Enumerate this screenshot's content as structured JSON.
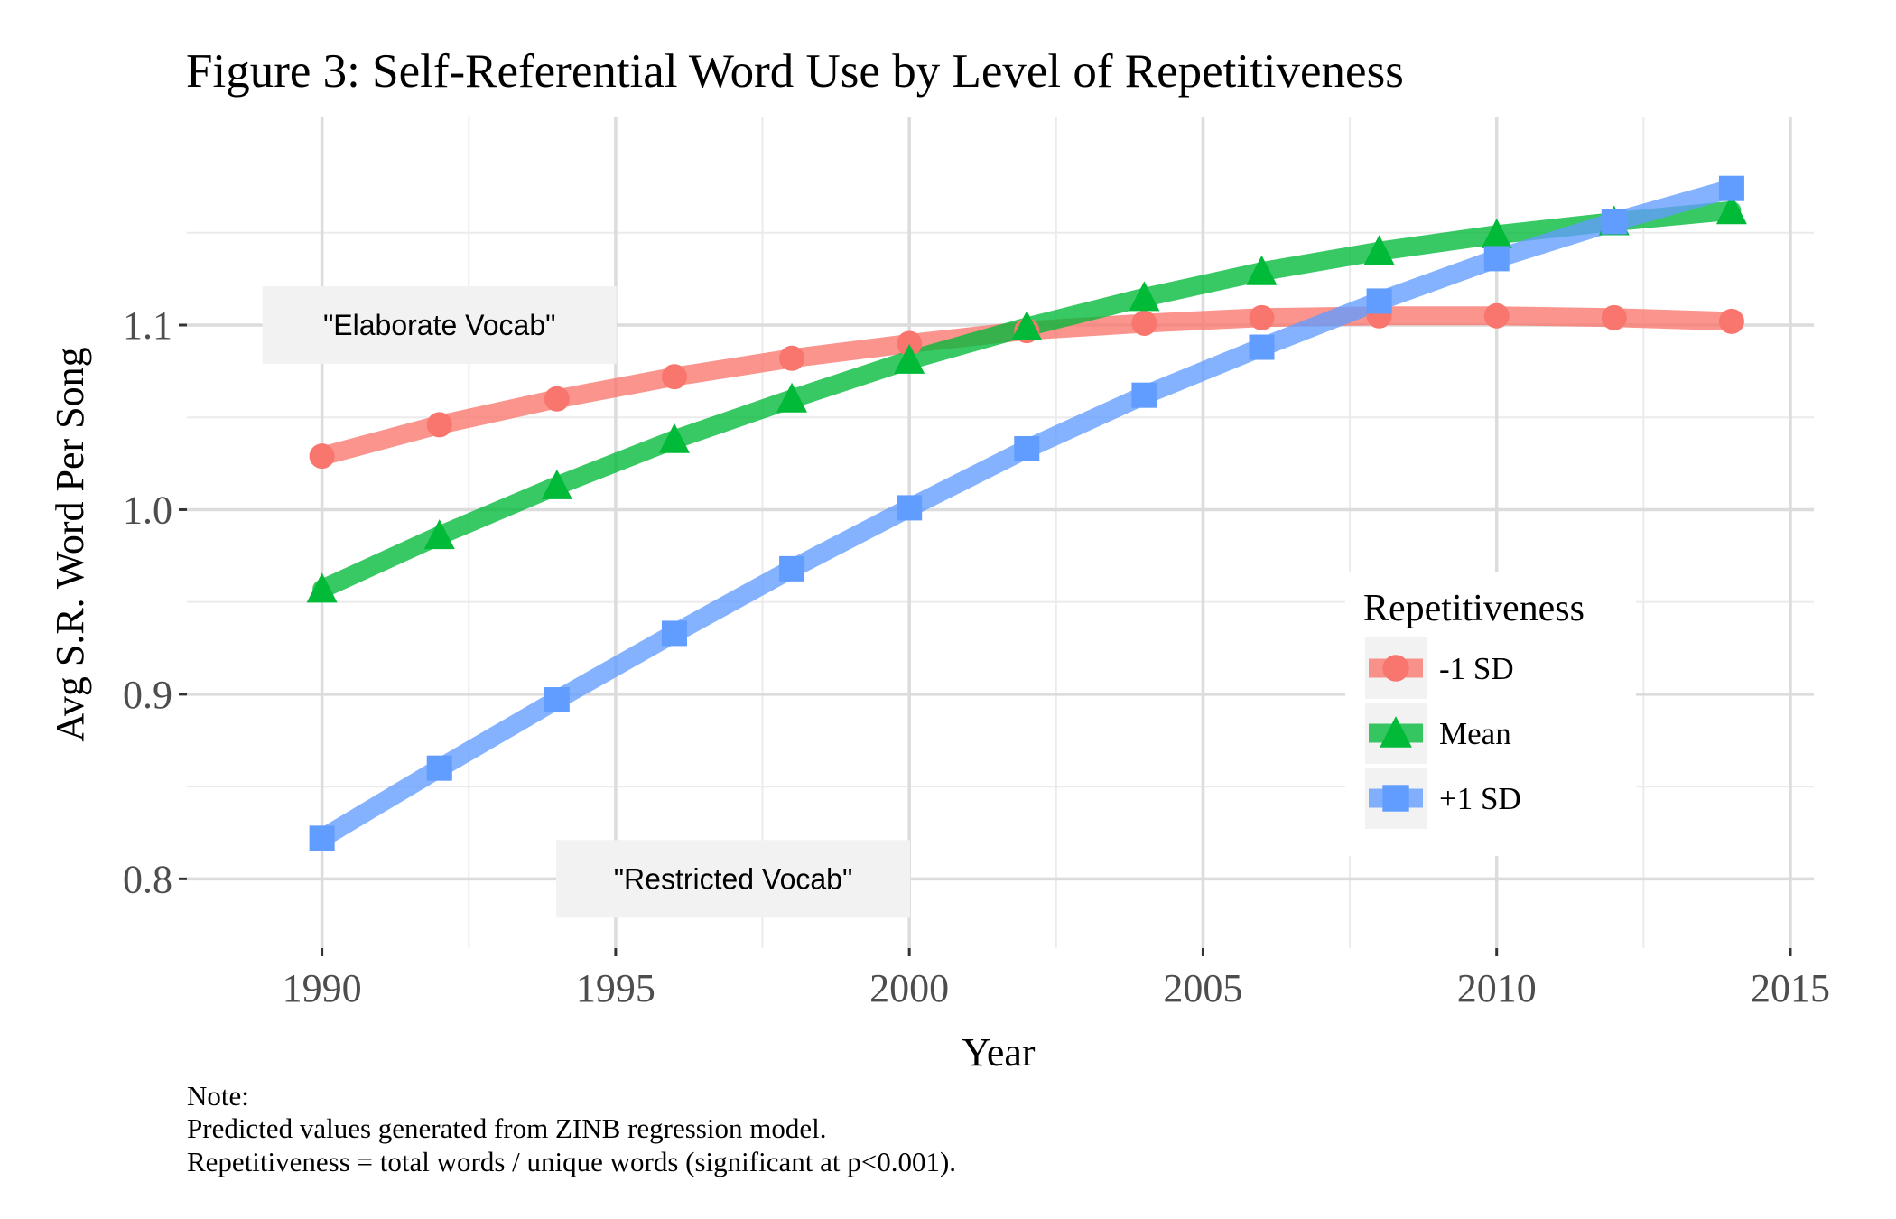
{
  "chart_data": {
    "type": "line",
    "title": "Figure 3: Self-Referential Word Use by Level of Repetitiveness",
    "xlabel": "Year",
    "ylabel": "Avg S.R. Word Per Song",
    "xlim": [
      1987.7,
      2015.4
    ],
    "ylim": [
      0.7625,
      1.2125
    ],
    "x_ticks": [
      1990,
      1995,
      2000,
      2005,
      2010,
      2015
    ],
    "y_ticks": [
      0.8,
      0.9,
      1.0,
      1.1
    ],
    "y_tick_labels": [
      "0.8",
      "0.9",
      "1.0",
      "1.1"
    ],
    "grid": true,
    "x": [
      1990,
      1992,
      1994,
      1996,
      1998,
      2000,
      2002,
      2004,
      2006,
      2008,
      2010,
      2012,
      2014
    ],
    "series": [
      {
        "name": "-1 SD",
        "marker": "circle",
        "color": "#F8766D",
        "values": [
          1.029,
          1.046,
          1.06,
          1.072,
          1.082,
          1.09,
          1.097,
          1.101,
          1.104,
          1.105,
          1.105,
          1.104,
          1.102
        ]
      },
      {
        "name": "Mean",
        "marker": "triangle",
        "color": "#00BA38",
        "values": [
          0.957,
          0.986,
          1.013,
          1.038,
          1.06,
          1.081,
          1.099,
          1.115,
          1.129,
          1.14,
          1.149,
          1.156,
          1.162
        ]
      },
      {
        "name": "+1 SD",
        "marker": "square",
        "color": "#619CFF",
        "values": [
          0.822,
          0.86,
          0.897,
          0.933,
          0.968,
          1.001,
          1.033,
          1.062,
          1.088,
          1.113,
          1.136,
          1.156,
          1.174
        ]
      }
    ],
    "annotations": [
      {
        "text": "\"Elaborate Vocab\"",
        "x": 1992.0,
        "y": 1.1
      },
      {
        "text": "\"Restricted Vocab\"",
        "x": 1997.0,
        "y": 0.8
      }
    ],
    "legend": {
      "title": "Repetitiveness",
      "placement": "right"
    },
    "note_lines": [
      "Note:",
      "Predicted values generated from ZINB regression model.",
      "Repetitiveness = total words / unique words (significant at p<0.001)."
    ]
  }
}
